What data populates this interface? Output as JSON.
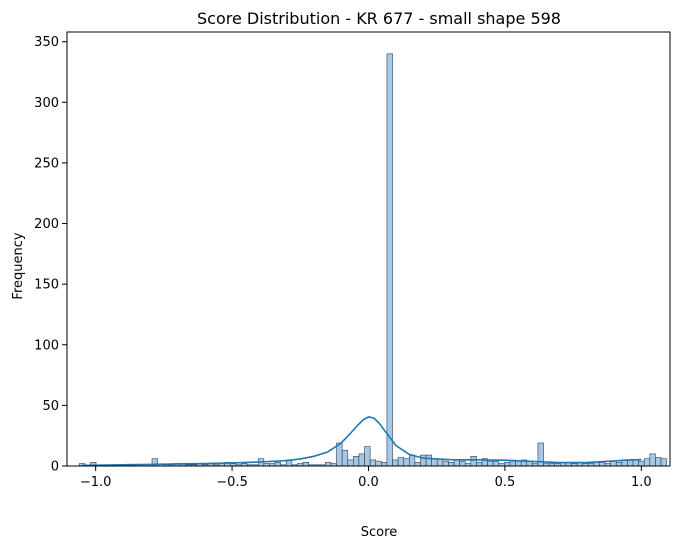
{
  "chart_data": {
    "type": "bar",
    "title": "Score Distribution - KR 677 - small shape 598",
    "xlabel": "Score",
    "ylabel": "Frequency",
    "xlim": [
      -1.105,
      1.105
    ],
    "ylim": [
      0,
      358
    ],
    "x_ticks": [
      -1.0,
      -0.5,
      0.0,
      0.5,
      1.0
    ],
    "x_tick_labels": [
      "−1.0",
      "−0.5",
      "0.0",
      "0.5",
      "1.0"
    ],
    "y_ticks": [
      0,
      50,
      100,
      150,
      200,
      250,
      300,
      350
    ],
    "y_tick_labels": [
      "0",
      "50",
      "100",
      "150",
      "200",
      "250",
      "300",
      "350"
    ],
    "grid": false,
    "bin_start": -1.06,
    "bin_width": 0.0205,
    "bin_counts": [
      2,
      1,
      3,
      1,
      0,
      0,
      0,
      1,
      1,
      1,
      0,
      0,
      0,
      6,
      0,
      1,
      1,
      2,
      2,
      1,
      1,
      2,
      1,
      2,
      1,
      2,
      3,
      2,
      1,
      2,
      1,
      1,
      6,
      2,
      2,
      3,
      1,
      5,
      1,
      2,
      3,
      1,
      1,
      1,
      3,
      2,
      19,
      13,
      5,
      8,
      10,
      16,
      5,
      4,
      3,
      340,
      5,
      7,
      6,
      9,
      3,
      9,
      9,
      6,
      6,
      4,
      3,
      5,
      4,
      2,
      8,
      3,
      6,
      4,
      4,
      2,
      3,
      4,
      4,
      5,
      4,
      2,
      19,
      2,
      2,
      2,
      3,
      3,
      2,
      3,
      2,
      2,
      3,
      3,
      2,
      4,
      3,
      5,
      5,
      5,
      4,
      6,
      10,
      7,
      6
    ],
    "kde": {
      "x": [
        -1.05,
        -0.9,
        -0.8,
        -0.7,
        -0.6,
        -0.5,
        -0.4,
        -0.3,
        -0.25,
        -0.2,
        -0.15,
        -0.1,
        -0.07,
        -0.04,
        -0.02,
        0.0,
        0.02,
        0.04,
        0.07,
        0.1,
        0.15,
        0.2,
        0.3,
        0.4,
        0.5,
        0.6,
        0.7,
        0.8,
        0.9,
        0.95,
        1.0
      ],
      "y": [
        0.5,
        1.0,
        1.3,
        1.7,
        2.0,
        2.5,
        3.3,
        4.5,
        5.8,
        8.0,
        11.5,
        19.0,
        26.0,
        33.5,
        38.0,
        40.5,
        39.5,
        35.0,
        26.0,
        17.0,
        9.5,
        6.5,
        5.2,
        5.0,
        4.8,
        3.8,
        2.8,
        2.8,
        4.2,
        5.0,
        5.3
      ]
    },
    "colors": {
      "bar_fill": "#a6c8e4",
      "bar_edge": "#2c3e50",
      "kde_line": "#1f77b4",
      "axis": "#000000"
    }
  }
}
